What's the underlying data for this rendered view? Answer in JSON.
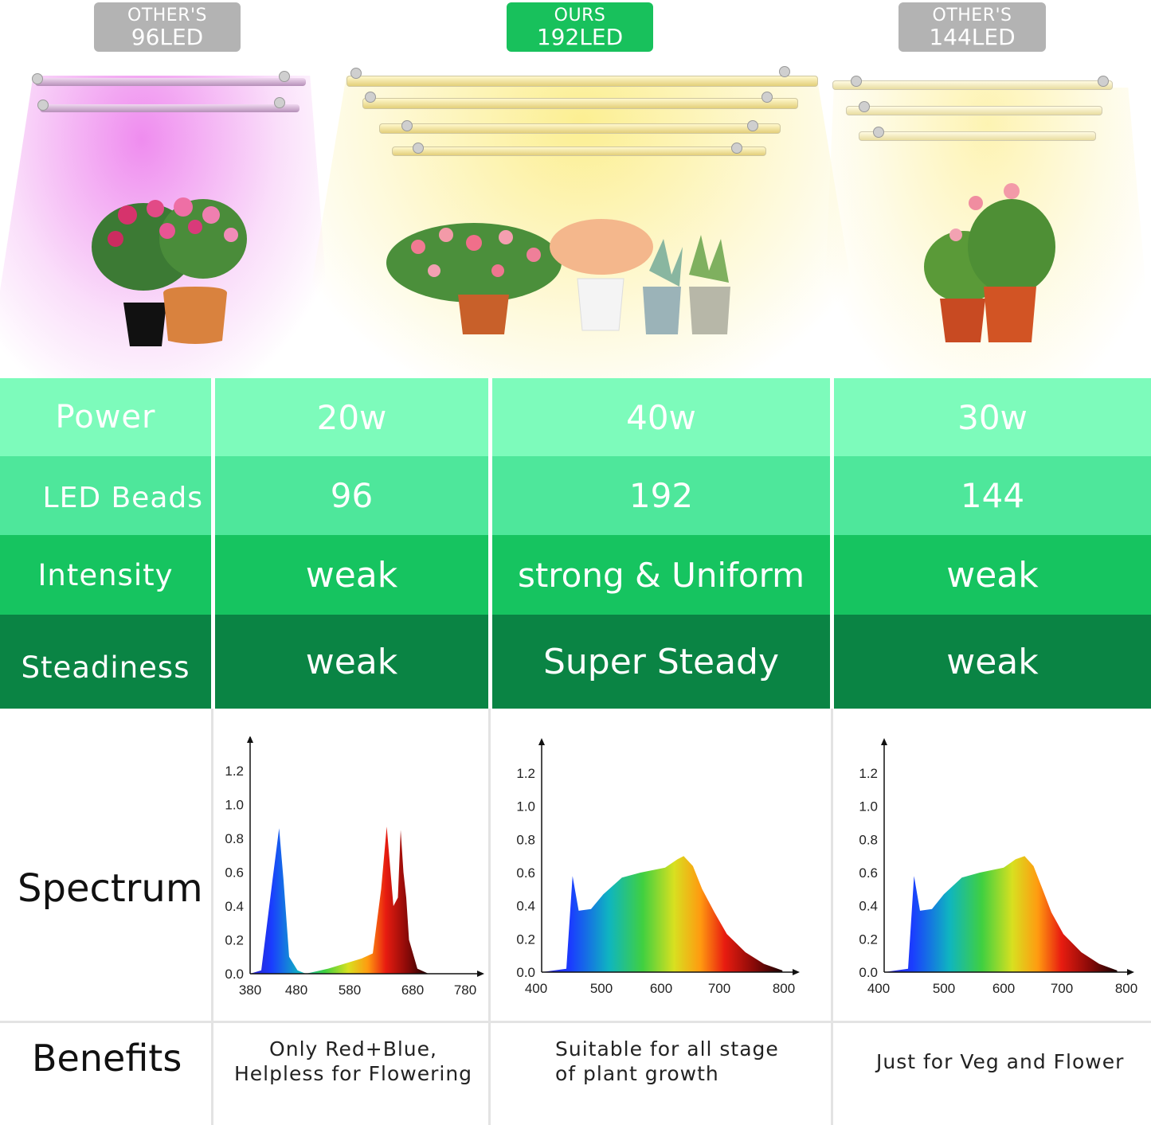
{
  "header": {
    "left": {
      "line1": "OTHER'S",
      "line2": "96LED"
    },
    "center": {
      "line1": "OURS",
      "line2": "192LED"
    },
    "right": {
      "line1": "OTHER'S",
      "line2": "144LED"
    }
  },
  "colors": {
    "badge_grey": "#b3b3b3",
    "badge_green": "#18c15c",
    "row_power": "#7dfbbb",
    "row_beads": "#4ee79b",
    "row_intensity": "#16c460",
    "row_steadiness": "#0a8444"
  },
  "table": {
    "labels": {
      "power": "Power",
      "beads": "LED Beads",
      "intensity": "Intensity",
      "steadiness": "Steadiness",
      "spectrum": "Spectrum",
      "benefits": "Benefits"
    },
    "columns": [
      {
        "power": "20w",
        "beads": "96",
        "intensity": "weak",
        "steadiness": "weak",
        "benefit_line1": "Only Red+Blue,",
        "benefit_line2": "Helpless for Flowering"
      },
      {
        "power": "40w",
        "beads": "192",
        "intensity": "strong & Uniform",
        "steadiness": "Super Steady",
        "benefit_line1": "Suitable for all stage",
        "benefit_line2": "of plant growth"
      },
      {
        "power": "30w",
        "beads": "144",
        "intensity": "weak",
        "steadiness": "weak",
        "benefit_line1": "Just for Veg and Flower",
        "benefit_line2": ""
      }
    ]
  },
  "chart_data": [
    {
      "type": "area",
      "title": "",
      "xlabel": "",
      "ylabel": "",
      "x_ticks": [
        "380",
        "480",
        "580",
        "680",
        "780"
      ],
      "y_ticks": [
        "0.0",
        "0.2",
        "0.4",
        "0.6",
        "0.8",
        "1.0",
        "1.2"
      ],
      "xlim": [
        380,
        780
      ],
      "ylim": [
        0,
        1.2
      ],
      "x": [
        380,
        400,
        420,
        432,
        440,
        450,
        465,
        480,
        520,
        560,
        580,
        600,
        615,
        625,
        637,
        645,
        650,
        655,
        660,
        665,
        680,
        700
      ],
      "values": [
        0.0,
        0.02,
        0.55,
        0.86,
        0.55,
        0.1,
        0.02,
        0.0,
        0.03,
        0.07,
        0.09,
        0.12,
        0.5,
        0.87,
        0.4,
        0.45,
        0.85,
        0.6,
        0.45,
        0.2,
        0.03,
        0.0
      ]
    },
    {
      "type": "area",
      "title": "",
      "xlabel": "",
      "ylabel": "",
      "x_ticks": [
        "400",
        "500",
        "600",
        "700",
        "800"
      ],
      "y_ticks": [
        "0.0",
        "0.2",
        "0.4",
        "0.6",
        "0.8",
        "1.0",
        "1.2"
      ],
      "xlim": [
        400,
        800
      ],
      "ylim": [
        0,
        1.2
      ],
      "x": [
        400,
        440,
        450,
        460,
        480,
        500,
        530,
        560,
        600,
        620,
        630,
        645,
        660,
        680,
        700,
        730,
        760,
        790
      ],
      "values": [
        0.0,
        0.02,
        0.58,
        0.37,
        0.38,
        0.47,
        0.57,
        0.6,
        0.63,
        0.68,
        0.7,
        0.64,
        0.5,
        0.36,
        0.23,
        0.12,
        0.05,
        0.01
      ]
    },
    {
      "type": "area",
      "title": "",
      "xlabel": "",
      "ylabel": "",
      "x_ticks": [
        "400",
        "500",
        "600",
        "700",
        "800"
      ],
      "y_ticks": [
        "0.0",
        "0.2",
        "0.4",
        "0.6",
        "0.8",
        "1.0",
        "1.2"
      ],
      "xlim": [
        400,
        800
      ],
      "ylim": [
        0,
        1.2
      ],
      "x": [
        400,
        440,
        450,
        460,
        480,
        500,
        530,
        560,
        600,
        620,
        635,
        650,
        665,
        680,
        700,
        730,
        760,
        790
      ],
      "values": [
        0.0,
        0.02,
        0.58,
        0.37,
        0.38,
        0.47,
        0.57,
        0.6,
        0.63,
        0.68,
        0.7,
        0.64,
        0.5,
        0.36,
        0.23,
        0.12,
        0.05,
        0.01
      ]
    }
  ]
}
